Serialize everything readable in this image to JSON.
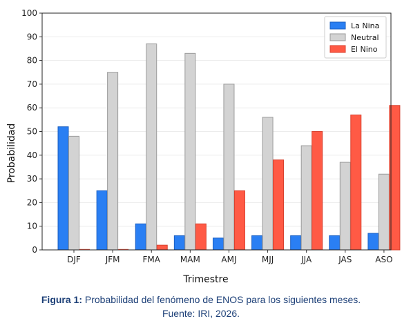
{
  "chart_data": {
    "type": "bar",
    "categories": [
      "DJF",
      "JFM",
      "FMA",
      "MAM",
      "AMJ",
      "MJJ",
      "JJA",
      "JAS",
      "ASO"
    ],
    "series": [
      {
        "name": "La Nina",
        "color": "#2a7ff3",
        "values": [
          52,
          25,
          11,
          6,
          5,
          6,
          6,
          6,
          7
        ]
      },
      {
        "name": "Neutral",
        "color": "#d3d3d3",
        "values": [
          48,
          75,
          87,
          83,
          70,
          56,
          44,
          37,
          32
        ]
      },
      {
        "name": "El Nino",
        "color": "#ff5a45",
        "values": [
          0,
          0,
          2,
          11,
          25,
          38,
          50,
          57,
          61
        ]
      }
    ],
    "xlabel": "Trimestre",
    "ylabel": "Probabilidad",
    "ylim": [
      0,
      100
    ],
    "yticks": [
      0,
      10,
      20,
      30,
      40,
      50,
      60,
      70,
      80,
      90,
      100
    ],
    "grid": true,
    "legend": "top-right"
  },
  "caption": {
    "label": "Figura 1:",
    "text": " Probabilidad del fenómeno de ENOS para los siguientes meses.",
    "source": "Fuente: IRI, 2026."
  }
}
